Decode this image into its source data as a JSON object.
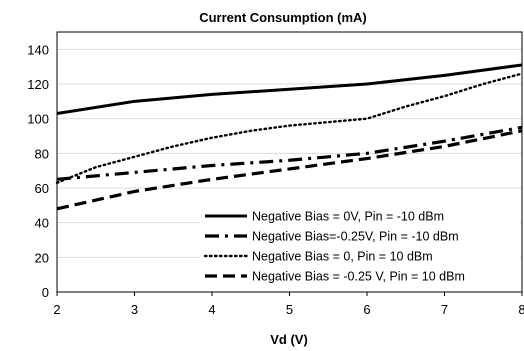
{
  "chart_data": {
    "type": "line",
    "title": "Current Consumption (mA)",
    "xlabel": "Vd (V)",
    "ylabel": "",
    "xlim": [
      2,
      8
    ],
    "ylim": [
      0,
      150
    ],
    "xticks": [
      2,
      3,
      4,
      5,
      6,
      7,
      8
    ],
    "yticks": [
      0,
      20,
      40,
      60,
      80,
      100,
      120,
      140
    ],
    "grid": "horizontal",
    "legend_position": "bottom-right",
    "series": [
      {
        "name": "Negative Bias = 0V, Pin = -10 dBm",
        "style": "solid",
        "color": "#000000",
        "x": [
          2,
          3,
          4,
          5,
          6,
          7,
          8
        ],
        "y": [
          103,
          110,
          114,
          117,
          120,
          125,
          131
        ]
      },
      {
        "name": "Negative Bias=-0.25V, Pin = -10 dBm",
        "style": "dashdot",
        "color": "#000000",
        "x": [
          2,
          3,
          4,
          5,
          6,
          7,
          8
        ],
        "y": [
          65,
          69,
          73,
          76,
          80,
          87,
          95
        ]
      },
      {
        "name": "Negative Bias = 0, Pin = 10 dBm",
        "style": "dotted",
        "color": "#000000",
        "x": [
          2,
          2.5,
          3,
          3.5,
          4,
          4.5,
          5,
          5.5,
          6,
          6.5,
          7,
          7.5,
          8
        ],
        "y": [
          63,
          72,
          78,
          84,
          89,
          93,
          96,
          98,
          100,
          107,
          113,
          120,
          126
        ]
      },
      {
        "name": "Negative Bias = -0.25 V, Pin = 10 dBm",
        "style": "dashed",
        "color": "#000000",
        "x": [
          2,
          3,
          4,
          5,
          6,
          7,
          8
        ],
        "y": [
          48,
          58,
          65,
          71,
          77,
          84,
          93
        ]
      }
    ]
  }
}
